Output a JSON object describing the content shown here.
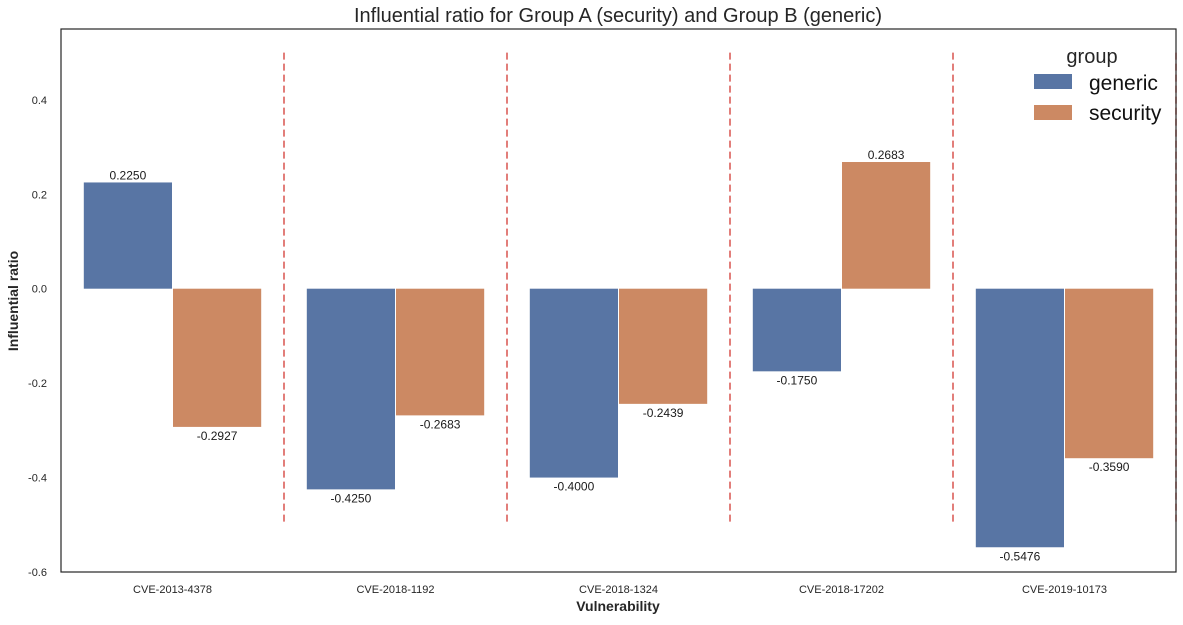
{
  "chart_data": {
    "type": "bar",
    "title": "Influential ratio for Group A (security) and Group B (generic)",
    "xlabel": "Vulnerability",
    "ylabel": "Influential ratio",
    "categories": [
      "CVE-2013-4378",
      "CVE-2018-1192",
      "CVE-2018-1324",
      "CVE-2018-17202",
      "CVE-2019-10173"
    ],
    "series": [
      {
        "name": "generic",
        "color": "#5875a4",
        "values": [
          0.225,
          -0.425,
          -0.4,
          -0.175,
          -0.5476
        ],
        "labels": [
          "0.2250",
          "-0.4250",
          "-0.4000",
          "-0.1750",
          "-0.5476"
        ]
      },
      {
        "name": "security",
        "color": "#cc8963",
        "values": [
          -0.2927,
          -0.2683,
          -0.2439,
          0.2683,
          -0.359
        ],
        "labels": [
          "-0.2927",
          "-0.2683",
          "-0.2439",
          "0.2683",
          "-0.3590"
        ]
      }
    ],
    "ylim": [
      -0.6,
      0.55
    ],
    "yticks": [
      -0.6,
      -0.4,
      -0.2,
      0.0,
      0.2,
      0.4
    ],
    "ytick_labels": [
      "-0.6",
      "-0.4",
      "-0.2",
      "0.0",
      "0.2",
      "0.4"
    ],
    "separator_lines": {
      "color": "#d9534f",
      "style": "dashed",
      "ymin": -0.5,
      "ymax": 0.5,
      "x_positions": [
        0.5,
        1.5,
        2.5,
        3.5,
        4.5
      ]
    },
    "legend": {
      "title": "group",
      "placement": "top-right",
      "entries": [
        "generic",
        "security"
      ]
    },
    "grid": false
  }
}
